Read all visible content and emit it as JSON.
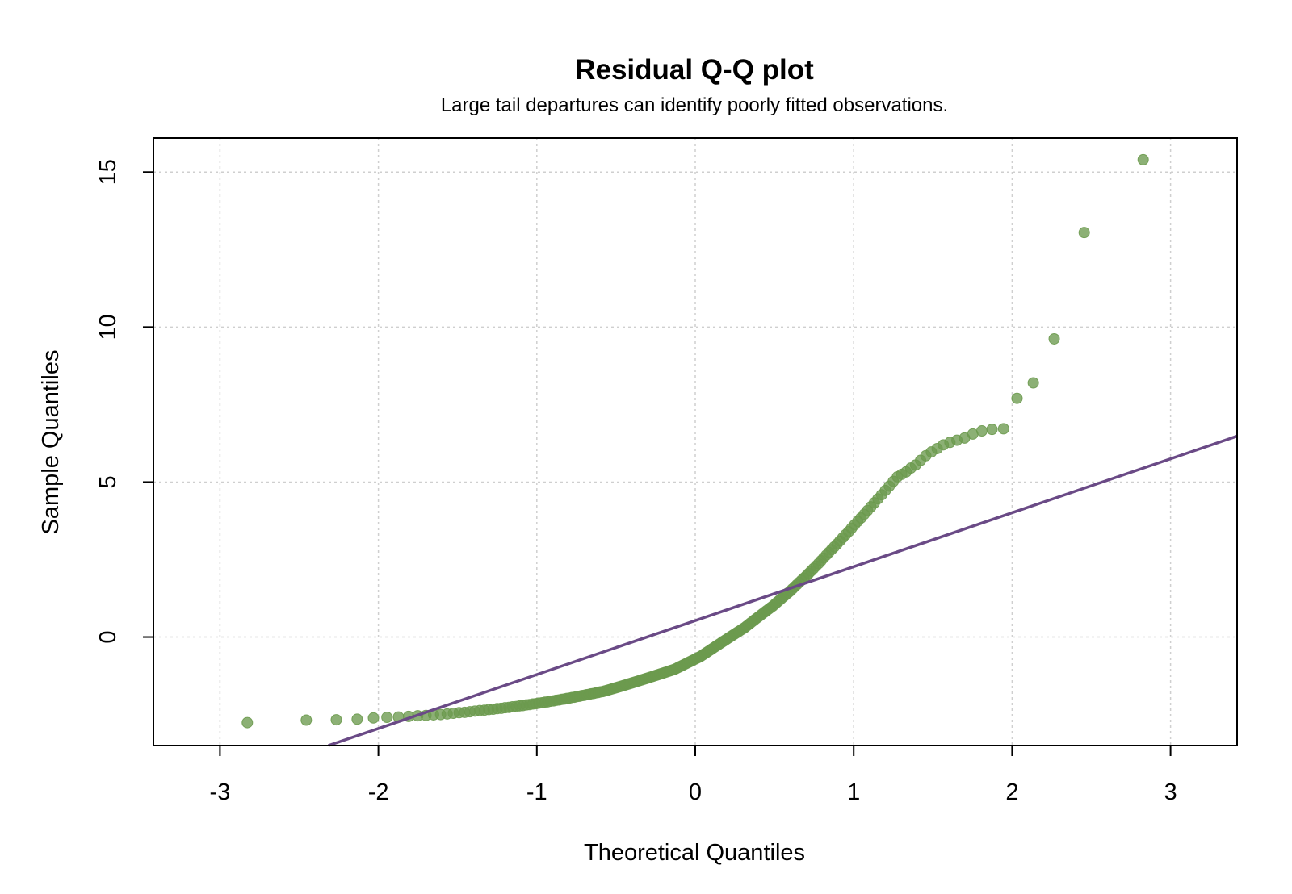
{
  "chart_data": {
    "type": "scatter",
    "title": "Residual Q-Q plot",
    "subtitle": "Large tail departures can identify poorly fitted observations.",
    "xlabel": "Theoretical Quantiles",
    "ylabel": "Sample Quantiles",
    "xlim": [
      -3.42,
      3.42
    ],
    "ylim": [
      -3.5,
      16.1
    ],
    "xticks": [
      -3,
      -2,
      -1,
      0,
      1,
      2,
      3
    ],
    "yticks": [
      0,
      5,
      10,
      15
    ],
    "grid": true,
    "point_color": "#6b9a4e",
    "line_color": "#6a4a86",
    "reference_line": {
      "intercept": 0.53,
      "slope": 1.74
    },
    "samples": [
      -2.76,
      -2.68,
      -2.67,
      -2.65,
      -2.61,
      -2.59,
      -2.58,
      -2.56,
      -2.54,
      -2.53,
      -2.51,
      -2.5,
      -2.48,
      -2.46,
      -2.44,
      -2.43,
      -2.41,
      -2.39,
      -2.37,
      -2.36,
      -2.34,
      -2.33,
      -2.31,
      -2.3,
      -2.28,
      -2.27,
      -2.25,
      -2.24,
      -2.22,
      -2.21,
      -2.19,
      -2.18,
      -2.16,
      -2.15,
      -2.13,
      -2.12,
      -2.1,
      -2.09,
      -2.07,
      -2.06,
      -2.04,
      -2.03,
      -2.01,
      -2.0,
      -1.98,
      -1.97,
      -1.95,
      -1.94,
      -1.92,
      -1.91,
      -1.89,
      -1.88,
      -1.86,
      -1.85,
      -1.83,
      -1.82,
      -1.8,
      -1.79,
      -1.77,
      -1.76,
      -1.74,
      -1.72,
      -1.7,
      -1.68,
      -1.66,
      -1.64,
      -1.62,
      -1.6,
      -1.58,
      -1.56,
      -1.54,
      -1.52,
      -1.5,
      -1.48,
      -1.46,
      -1.44,
      -1.42,
      -1.4,
      -1.38,
      -1.36,
      -1.34,
      -1.32,
      -1.3,
      -1.28,
      -1.26,
      -1.24,
      -1.22,
      -1.2,
      -1.18,
      -1.16,
      -1.14,
      -1.12,
      -1.1,
      -1.08,
      -1.06,
      -1.04,
      -1.01,
      -0.98,
      -0.95,
      -0.92,
      -0.89,
      -0.86,
      -0.83,
      -0.8,
      -0.77,
      -0.74,
      -0.71,
      -0.68,
      -0.65,
      -0.62,
      -0.58,
      -0.54,
      -0.5,
      -0.46,
      -0.42,
      -0.38,
      -0.34,
      -0.3,
      -0.26,
      -0.22,
      -0.18,
      -0.14,
      -0.1,
      -0.06,
      -0.02,
      0.02,
      0.06,
      0.1,
      0.14,
      0.18,
      0.22,
      0.26,
      0.3,
      0.35,
      0.4,
      0.45,
      0.5,
      0.55,
      0.6,
      0.65,
      0.7,
      0.75,
      0.8,
      0.85,
      0.9,
      0.95,
      1.0,
      1.06,
      1.12,
      1.18,
      1.24,
      1.3,
      1.36,
      1.42,
      1.48,
      1.55,
      1.62,
      1.69,
      1.76,
      1.83,
      1.9,
      1.97,
      2.05,
      2.13,
      2.21,
      2.29,
      2.37,
      2.46,
      2.55,
      2.64,
      2.73,
      2.82,
      2.91,
      3.0,
      3.1,
      3.2,
      3.3,
      3.4,
      3.51,
      3.62,
      3.73,
      3.84,
      3.96,
      4.08,
      4.2,
      4.33,
      4.46,
      4.59,
      4.73,
      4.87,
      5.02,
      5.17,
      5.25,
      5.33,
      5.45,
      5.55,
      5.7,
      5.85,
      5.97,
      6.08,
      6.2,
      6.28,
      6.35,
      6.42,
      6.55,
      6.65,
      6.7,
      6.72,
      7.7,
      8.2,
      9.62,
      13.05,
      15.4
    ]
  }
}
